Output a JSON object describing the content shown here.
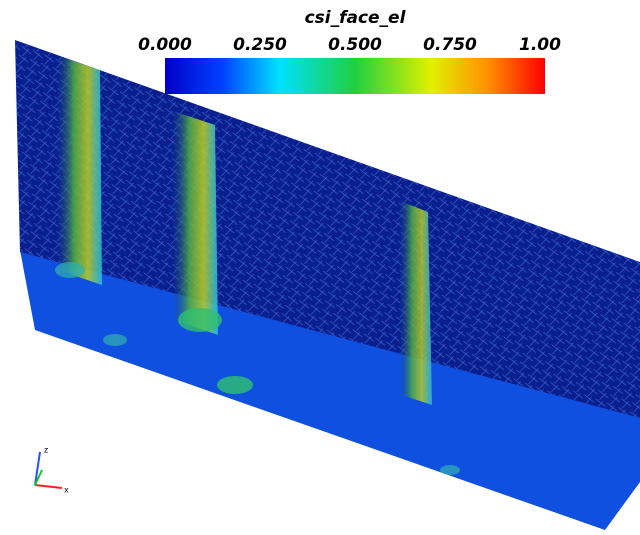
{
  "legend": {
    "title": "csi_face_el",
    "labels": [
      "0.000",
      "0.250",
      "0.500",
      "0.750",
      "1.00"
    ]
  },
  "axes_triad": {
    "labels": [
      "z",
      "x"
    ]
  }
}
